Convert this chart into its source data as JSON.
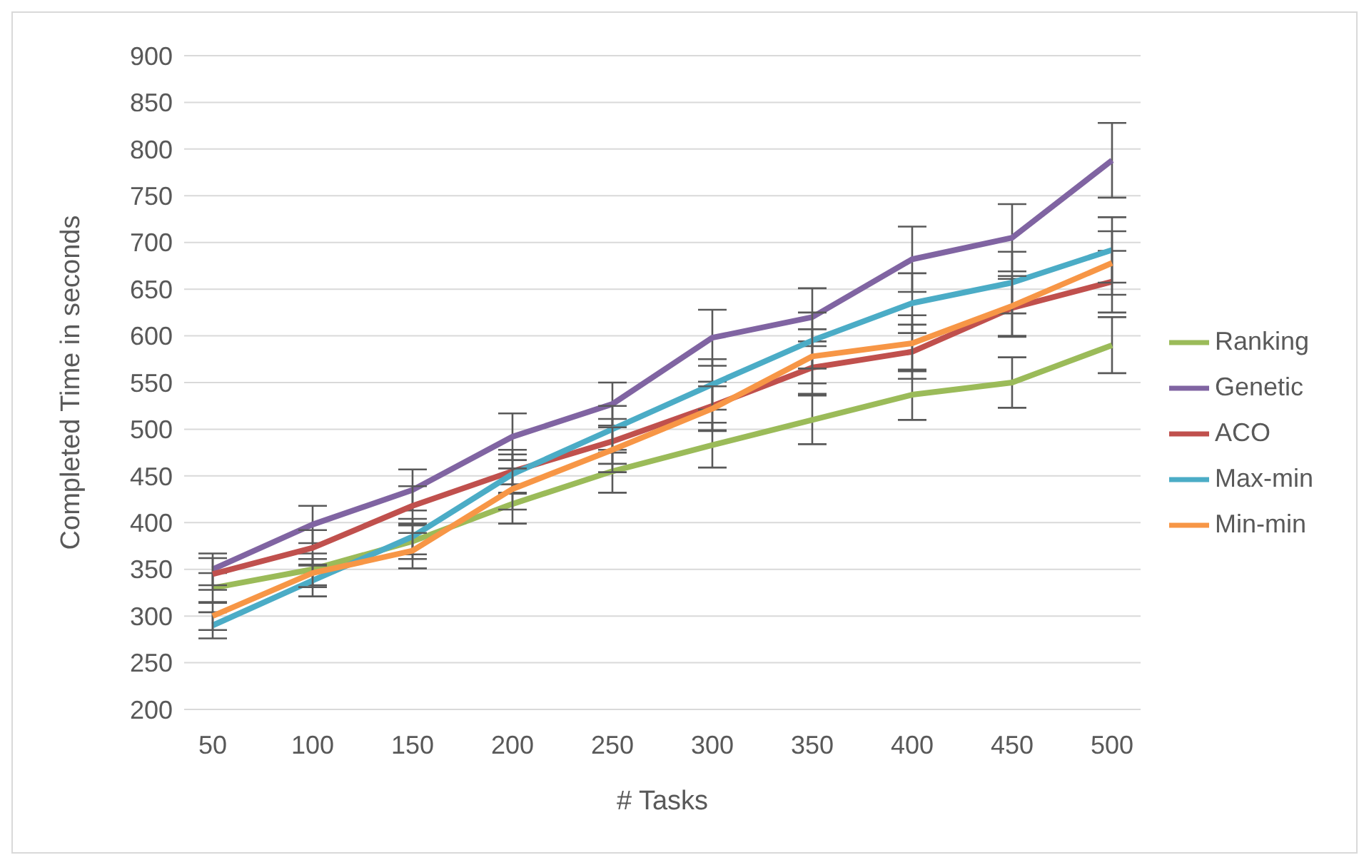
{
  "chart_data": {
    "type": "line",
    "xlabel": "# Tasks",
    "ylabel": "Completed Time in seconds",
    "categories": [
      "50",
      "100",
      "150",
      "200",
      "250",
      "300",
      "350",
      "400",
      "450",
      "500"
    ],
    "series": [
      {
        "name": "Ranking",
        "color": "#9bbb59",
        "values": [
          330,
          350,
          380,
          420,
          455,
          483,
          510,
          537,
          550,
          590
        ],
        "errors": [
          16,
          17,
          19,
          21,
          23,
          24,
          26,
          27,
          27,
          30
        ]
      },
      {
        "name": "Genetic",
        "color": "#8064a2",
        "values": [
          350,
          398,
          435,
          492,
          527,
          598,
          620,
          682,
          705,
          788
        ],
        "errors": [
          17,
          20,
          22,
          25,
          23,
          30,
          31,
          35,
          36,
          40
        ]
      },
      {
        "name": "ACO",
        "color": "#c0504d",
        "values": [
          345,
          373,
          418,
          455,
          487,
          525,
          566,
          583,
          630,
          658
        ],
        "errors": [
          17,
          19,
          21,
          23,
          24,
          26,
          28,
          29,
          31,
          33
        ]
      },
      {
        "name": "Max-min",
        "color": "#4bacc6",
        "values": [
          290,
          338,
          385,
          452,
          500,
          548,
          595,
          635,
          657,
          692
        ],
        "errors": [
          14,
          17,
          19,
          21,
          25,
          27,
          30,
          32,
          33,
          35
        ]
      },
      {
        "name": "Min-min",
        "color": "#f79646",
        "values": [
          300,
          346,
          370,
          436,
          478,
          522,
          578,
          592,
          632,
          678
        ],
        "errors": [
          15,
          15,
          19,
          22,
          24,
          24,
          29,
          30,
          32,
          34
        ]
      }
    ],
    "ylim": [
      200,
      900
    ],
    "yticks": [
      200,
      250,
      300,
      350,
      400,
      450,
      500,
      550,
      600,
      650,
      700,
      750,
      800,
      850,
      900
    ],
    "grid": "y",
    "legend": "right",
    "marker": "none",
    "line_style": "solid"
  }
}
